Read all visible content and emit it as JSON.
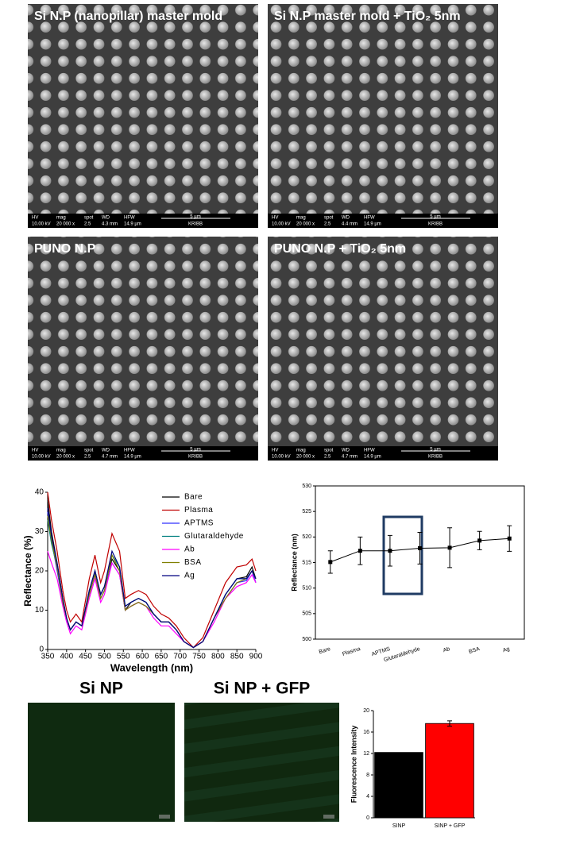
{
  "sem_info_headers": [
    "HV",
    "mag",
    "spot",
    "WD",
    "HFW"
  ],
  "sem_panels": [
    {
      "title": "Si N.P (nanopillar) master mold",
      "hv": "10.00 kV",
      "mag": "20 000 x",
      "spot": "2.5",
      "wd": "4.3 mm",
      "hfw": "14.9 µm",
      "scale": "5 µm",
      "org": "KRIBB"
    },
    {
      "title": "Si N.P master mold + TiO₂ 5nm",
      "hv": "10.00 kV",
      "mag": "20 000 x",
      "spot": "2.5",
      "wd": "4.4 mm",
      "hfw": "14.9 µm",
      "scale": "5 µm",
      "org": "KRIBB"
    },
    {
      "title": "PUNO N.P",
      "hv": "10.00 kV",
      "mag": "20 000 x",
      "spot": "2.5",
      "wd": "4.7 mm",
      "hfw": "14.9 µm",
      "scale": "5 µm",
      "org": "KRIBB"
    },
    {
      "title": "PUNO N.P + TiO₂ 5nm",
      "hv": "10.00 kV",
      "mag": "20 000 x",
      "spot": "2.5",
      "wd": "4.7 mm",
      "hfw": "14.9 µm",
      "scale": "5 µm",
      "org": "KRIBB"
    }
  ],
  "fluorescence_images": [
    {
      "label": "Si NP"
    },
    {
      "label": "Si NP + GFP"
    }
  ],
  "chart_data": [
    {
      "type": "line",
      "x_label": "Wavelength (nm)",
      "y_label": "Reflectance (%)",
      "x": [
        350,
        360,
        375,
        390,
        400,
        410,
        425,
        440,
        460,
        475,
        490,
        500,
        520,
        540,
        555,
        570,
        590,
        610,
        630,
        650,
        670,
        690,
        710,
        735,
        760,
        790,
        820,
        850,
        875,
        890,
        900
      ],
      "xlim": [
        350,
        900
      ],
      "xticks": [
        350,
        400,
        450,
        500,
        550,
        600,
        650,
        700,
        750,
        800,
        850,
        900
      ],
      "ylim": [
        0,
        40
      ],
      "yticks": [
        0,
        10,
        20,
        30,
        40
      ],
      "legend": "upper right",
      "series": [
        {
          "name": "Bare",
          "color": "#000000",
          "values": [
            38,
            30,
            22,
            13,
            8,
            5,
            7,
            6,
            15,
            20,
            14,
            16,
            23,
            20,
            10,
            12,
            13,
            12,
            9,
            7,
            7,
            5,
            2,
            0.5,
            2,
            8,
            14,
            18,
            18.5,
            21,
            18
          ]
        },
        {
          "name": "Plasma",
          "color": "#c00000",
          "values": [
            40,
            33,
            25,
            15,
            10,
            7,
            9,
            7,
            18,
            24,
            17,
            20,
            29.5,
            25,
            13,
            14,
            15,
            14,
            11,
            9,
            8,
            6,
            3,
            0.5,
            3,
            10,
            17,
            21,
            21.5,
            23,
            20
          ]
        },
        {
          "name": "APTMS",
          "color": "#3030ff",
          "values": [
            35,
            28,
            20,
            12,
            8,
            5,
            7,
            6,
            14,
            19,
            13,
            15,
            22,
            19,
            10,
            11,
            12,
            11,
            9,
            7,
            7,
            5,
            2,
            0.5,
            2,
            8,
            13,
            17,
            17.5,
            20,
            17
          ]
        },
        {
          "name": "Glutaraldehyde",
          "color": "#008080",
          "values": [
            33,
            27,
            21,
            12,
            8,
            5,
            7,
            6,
            15,
            20,
            14,
            16,
            24,
            21,
            11,
            12,
            13,
            12,
            9,
            7,
            7,
            5,
            2,
            0.5,
            2,
            8,
            14,
            18,
            18,
            20,
            18
          ]
        },
        {
          "name": "Ab",
          "color": "#ff00ff",
          "values": [
            25,
            22,
            18,
            11,
            7,
            4,
            6,
            5,
            13,
            18,
            12,
            14,
            22,
            19,
            10,
            11,
            12,
            11,
            8,
            6,
            6,
            4,
            2,
            0.5,
            2,
            7,
            13,
            16,
            17,
            19,
            17
          ]
        },
        {
          "name": "BSA",
          "color": "#808000",
          "values": [
            34,
            28,
            21,
            12,
            8,
            5,
            7,
            6,
            14,
            19,
            13,
            15,
            24,
            20,
            10,
            11,
            12,
            11,
            9,
            7,
            7,
            5,
            2,
            0.5,
            2,
            8,
            13,
            17,
            18,
            20,
            18
          ]
        },
        {
          "name": "Ag",
          "color": "#000080",
          "values": [
            36,
            29,
            22,
            13,
            8,
            5,
            7,
            6,
            15,
            20,
            14,
            16,
            25,
            21,
            11,
            12,
            13,
            12,
            9,
            7,
            7,
            5,
            2,
            0.5,
            2,
            8,
            14,
            18,
            18,
            20,
            18
          ]
        }
      ]
    },
    {
      "type": "line",
      "y_label": "Reflectance (nm)",
      "categories": [
        "Bare",
        "Plasma",
        "APTMS",
        "Glutaraldehyde",
        "Ab",
        "BSA",
        "Ag"
      ],
      "values": [
        515.1,
        517.3,
        517.3,
        517.8,
        517.9,
        519.3,
        519.7
      ],
      "errors": [
        2.2,
        2.7,
        3.0,
        3.1,
        3.9,
        1.8,
        2.5
      ],
      "color": "#000000",
      "markers": true,
      "ylim": [
        500,
        530
      ],
      "yticks": [
        500,
        505,
        510,
        515,
        520,
        525,
        530
      ]
    },
    {
      "type": "bar",
      "y_label": "Fluorescence Intensity",
      "categories": [
        "SINP",
        "SINP + GFP"
      ],
      "values": [
        12.2,
        17.6
      ],
      "errors": [
        0,
        0.5
      ],
      "colors": [
        "#000000",
        "#ff0000"
      ],
      "ylim": [
        0,
        20
      ],
      "yticks": [
        0,
        4,
        8,
        12,
        16,
        20
      ]
    }
  ]
}
